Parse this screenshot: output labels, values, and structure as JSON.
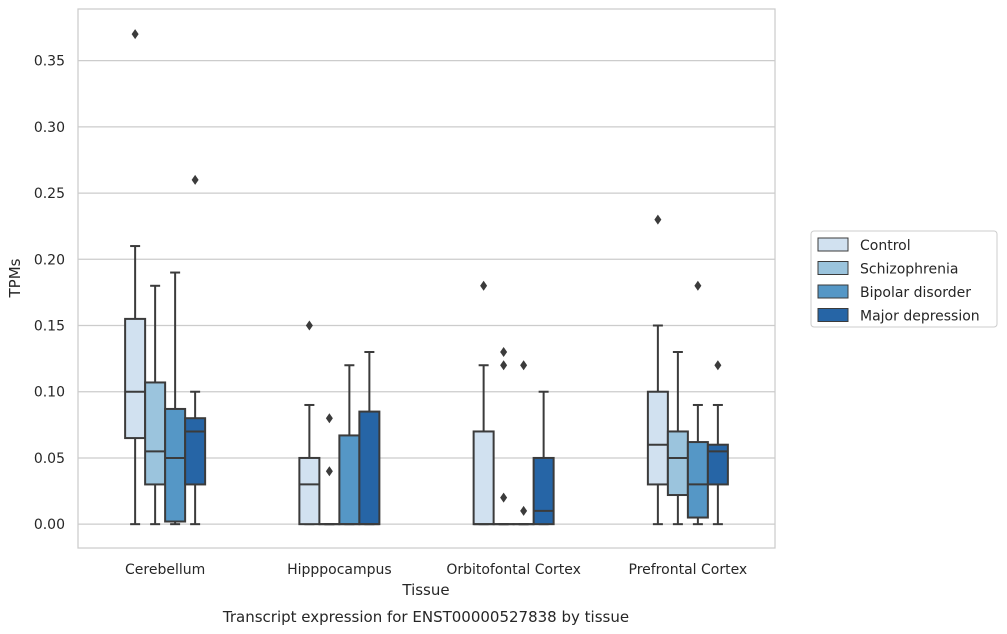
{
  "chart_data": {
    "type": "boxplot",
    "title": "",
    "caption": "Transcript expression for ENST00000527838 by tissue",
    "xlabel": "Tissue",
    "ylabel": "TPMs",
    "ylim": [
      -0.018,
      0.389
    ],
    "yticks": [
      0.0,
      0.05,
      0.1,
      0.15,
      0.2,
      0.25,
      0.3,
      0.35
    ],
    "ytick_labels": [
      "0.00",
      "0.05",
      "0.10",
      "0.15",
      "0.20",
      "0.25",
      "0.30",
      "0.35"
    ],
    "grid": "horizontal",
    "legend_position": "right-outside",
    "categories": [
      "Cerebellum",
      "Hipppocampus",
      "Orbitofontal Cortex",
      "Prefrontal Cortex"
    ],
    "series": [
      {
        "name": "Control",
        "color": "#d1e1f0",
        "boxes": [
          {
            "q1": 0.065,
            "median": 0.1,
            "q3": 0.155,
            "whislo": 0.0,
            "whishi": 0.21,
            "fliers": [
              0.37
            ]
          },
          {
            "q1": 0.0,
            "median": 0.03,
            "q3": 0.05,
            "whislo": 0.0,
            "whishi": 0.09,
            "fliers": [
              0.15
            ]
          },
          {
            "q1": 0.0,
            "median": 0.0,
            "q3": 0.07,
            "whislo": 0.0,
            "whishi": 0.12,
            "fliers": [
              0.18
            ]
          },
          {
            "q1": 0.03,
            "median": 0.06,
            "q3": 0.1,
            "whislo": 0.0,
            "whishi": 0.15,
            "fliers": [
              0.23
            ]
          }
        ]
      },
      {
        "name": "Schizophrenia",
        "color": "#9bc4dd",
        "boxes": [
          {
            "q1": 0.03,
            "median": 0.055,
            "q3": 0.107,
            "whislo": 0.0,
            "whishi": 0.18,
            "fliers": []
          },
          {
            "q1": 0.0,
            "median": 0.0,
            "q3": 0.0,
            "whislo": 0.0,
            "whishi": 0.0,
            "fliers": [
              0.04,
              0.08
            ]
          },
          {
            "q1": 0.0,
            "median": 0.0,
            "q3": 0.0,
            "whislo": 0.0,
            "whishi": 0.0,
            "fliers": [
              0.02,
              0.12,
              0.13
            ]
          },
          {
            "q1": 0.022,
            "median": 0.05,
            "q3": 0.07,
            "whislo": 0.0,
            "whishi": 0.13,
            "fliers": []
          }
        ]
      },
      {
        "name": "Bipolar disorder",
        "color": "#5597c6",
        "boxes": [
          {
            "q1": 0.002,
            "median": 0.05,
            "q3": 0.087,
            "whislo": 0.0,
            "whishi": 0.19,
            "fliers": []
          },
          {
            "q1": 0.0,
            "median": 0.0,
            "q3": 0.067,
            "whislo": 0.0,
            "whishi": 0.12,
            "fliers": []
          },
          {
            "q1": 0.0,
            "median": 0.0,
            "q3": 0.0,
            "whislo": 0.0,
            "whishi": 0.0,
            "fliers": [
              0.01,
              0.12
            ]
          },
          {
            "q1": 0.005,
            "median": 0.03,
            "q3": 0.062,
            "whislo": 0.0,
            "whishi": 0.09,
            "fliers": [
              0.18
            ]
          }
        ]
      },
      {
        "name": "Major depression",
        "color": "#2665a6",
        "boxes": [
          {
            "q1": 0.03,
            "median": 0.07,
            "q3": 0.08,
            "whislo": 0.0,
            "whishi": 0.1,
            "fliers": [
              0.26
            ]
          },
          {
            "q1": 0.0,
            "median": 0.0,
            "q3": 0.085,
            "whislo": 0.0,
            "whishi": 0.13,
            "fliers": []
          },
          {
            "q1": 0.0,
            "median": 0.01,
            "q3": 0.05,
            "whislo": 0.0,
            "whishi": 0.1,
            "fliers": []
          },
          {
            "q1": 0.03,
            "median": 0.055,
            "q3": 0.06,
            "whislo": 0.0,
            "whishi": 0.09,
            "fliers": [
              0.12
            ]
          }
        ]
      }
    ]
  }
}
